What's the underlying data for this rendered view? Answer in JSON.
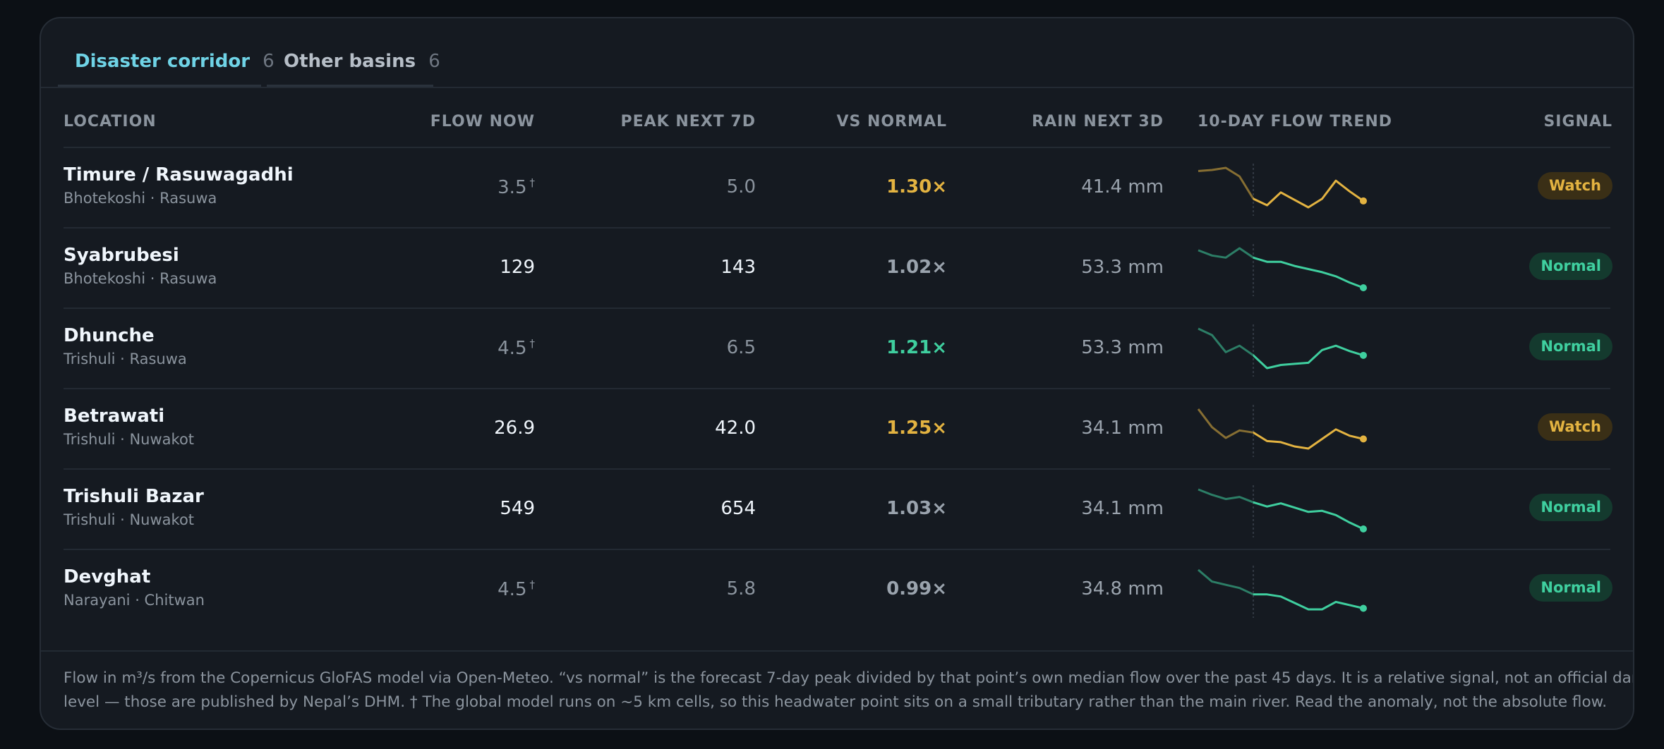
{
  "tabs": [
    {
      "label": "Disaster corridor",
      "count": "6"
    },
    {
      "label": "Other basins",
      "count": "6"
    }
  ],
  "table": {
    "columns": [
      "LOCATION",
      "FLOW NOW",
      "PEAK NEXT 7D",
      "VS NORMAL",
      "RAIN NEXT 3D",
      "10-DAY FLOW TREND",
      "SIGNAL"
    ],
    "rows": [
      {
        "name": "Timure / Rasuwagadhi",
        "location": "Bhotekoshi · Rasuwa",
        "flow_now": "3.5",
        "flow_note": "†",
        "value_color": "#8b949e",
        "peak": "5.0",
        "vs_normal": "1.30×",
        "vs_color": "#e3b341",
        "rain": "41.4 mm",
        "trend": [
          41,
          42,
          44,
          36,
          15,
          9,
          21,
          14,
          7,
          15,
          32,
          22,
          13
        ],
        "signal": "Watch",
        "color": "#e3b341",
        "badge_bg": "#3a2f16"
      },
      {
        "name": "Syabrubesi",
        "location": "Bhotekoshi · Rasuwa",
        "flow_now": "129",
        "value_color": "#f0f6fc",
        "peak": "143",
        "vs_normal": "1.02×",
        "vs_color": "#9aa3ad",
        "rain": "53.3 mm",
        "trend": [
          67,
          62,
          60,
          69,
          60,
          56,
          56,
          52,
          49,
          46,
          42,
          36,
          31
        ],
        "signal": "Normal",
        "color": "#3fcf9f",
        "badge_bg": "#143a2e"
      },
      {
        "name": "Dhunche",
        "location": "Trishuli · Rasuwa",
        "flow_now": "4.5",
        "flow_note": "†",
        "value_color": "#8b949e",
        "peak": "6.5",
        "vs_normal": "1.21×",
        "vs_color": "#3fcf9f",
        "rain": "53.3 mm",
        "trend": [
          93,
          87,
          71,
          77,
          68,
          56,
          59,
          60,
          61,
          73,
          77,
          72,
          68
        ],
        "signal": "Normal",
        "color": "#3fcf9f",
        "badge_bg": "#143a2e"
      },
      {
        "name": "Betrawati",
        "location": "Trishuli · Nuwakot",
        "flow_now": "26.9",
        "value_color": "#f0f6fc",
        "peak": "42.0",
        "vs_normal": "1.25×",
        "vs_color": "#e3b341",
        "rain": "34.1 mm",
        "trend": [
          117,
          100,
          90,
          97,
          95,
          87,
          86,
          82,
          80,
          89,
          98,
          92,
          89
        ],
        "signal": "Watch",
        "color": "#e3b341",
        "badge_bg": "#3a2f16"
      },
      {
        "name": "Trishuli Bazar",
        "location": "Trishuli · Nuwakot",
        "flow_now": "549",
        "value_color": "#f0f6fc",
        "peak": "654",
        "vs_normal": "1.03×",
        "vs_color": "#9aa3ad",
        "rain": "34.1 mm",
        "trend": [
          141,
          136,
          132,
          134,
          129,
          125,
          128,
          124,
          120,
          121,
          117,
          110,
          104
        ],
        "signal": "Normal",
        "color": "#3fcf9f",
        "badge_bg": "#143a2e"
      },
      {
        "name": "Devghat",
        "location": "Narayani · Chitwan",
        "flow_now": "4.5",
        "flow_note": "†",
        "value_color": "#8b949e",
        "peak": "5.8",
        "vs_normal": "0.99×",
        "vs_color": "#9aa3ad",
        "rain": "34.8 mm",
        "trend": [
          165,
          154,
          151,
          148,
          142,
          142,
          140,
          134,
          128,
          128,
          135,
          132,
          129
        ],
        "signal": "Normal",
        "color": "#3fcf9f",
        "badge_bg": "#143a2e"
      }
    ]
  },
  "footer": [
    "Flow in m³/s from the Copernicus GloFAS model via Open-Meteo. “vs normal” is the forecast 7-day peak divided by that point’s own median flow over the past 45 days. It is a relative signal, not an official danger",
    "level — those are published by Nepal’s DHM. † The global model runs on ~5 km cells, so this headwater point sits on a small tributary rather than the main river. Read the anomaly, not the absolute flow."
  ]
}
